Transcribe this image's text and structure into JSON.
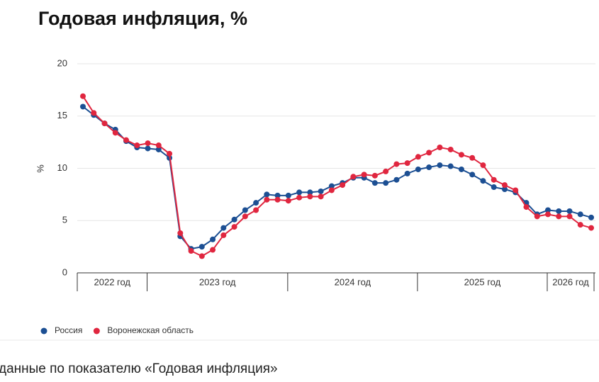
{
  "chart_data": {
    "type": "line",
    "title": "Годовая инфляция, %",
    "ylabel": "%",
    "categories": [
      null,
      null,
      null,
      null,
      null,
      null,
      null,
      null,
      null,
      null,
      null,
      null,
      null,
      null,
      null,
      null,
      null,
      null,
      null,
      null,
      null,
      null,
      null,
      null,
      null,
      null,
      null,
      null,
      null,
      null,
      null,
      null,
      null,
      null,
      null,
      null,
      null,
      null,
      null,
      null,
      null,
      null,
      null,
      null,
      null,
      null,
      null,
      null
    ],
    "year_groups": [
      {
        "label": "2022 год",
        "count": 6
      },
      {
        "label": "2023 год",
        "count": 13
      },
      {
        "label": "2024 год",
        "count": 12
      },
      {
        "label": "2025 год",
        "count": 12
      },
      {
        "label": "2026 год",
        "count": 5
      }
    ],
    "series": [
      {
        "name": "Россия",
        "color": "#1c4f93",
        "values": [
          15.9,
          15.1,
          14.3,
          13.7,
          12.6,
          12.0,
          11.9,
          11.8,
          11.0,
          3.5,
          2.3,
          2.5,
          3.2,
          4.3,
          5.1,
          6.0,
          6.7,
          7.5,
          7.4,
          7.4,
          7.7,
          7.7,
          7.8,
          8.3,
          8.6,
          9.1,
          9.1,
          8.6,
          8.6,
          8.9,
          9.5,
          9.9,
          10.1,
          10.3,
          10.2,
          9.9,
          9.4,
          8.8,
          8.2,
          8.0,
          7.7,
          6.7,
          5.6,
          6.0,
          5.9,
          5.9,
          5.6,
          5.3
        ]
      },
      {
        "name": "Воронежская область",
        "color": "#e0263f",
        "values": [
          16.9,
          15.3,
          14.3,
          13.4,
          12.7,
          12.2,
          12.4,
          12.2,
          11.4,
          3.8,
          2.1,
          1.6,
          2.2,
          3.6,
          4.4,
          5.4,
          6.0,
          7.0,
          7.0,
          6.9,
          7.2,
          7.3,
          7.3,
          7.9,
          8.4,
          9.2,
          9.4,
          9.3,
          9.7,
          10.4,
          10.5,
          11.1,
          11.5,
          12.0,
          11.8,
          11.3,
          11.0,
          10.3,
          8.9,
          8.4,
          7.9,
          6.3,
          5.4,
          5.6,
          5.4,
          5.4,
          4.6,
          4.3
        ]
      }
    ],
    "ylim": [
      0,
      20
    ],
    "yticks": [
      0,
      5,
      10,
      15,
      20
    ],
    "grid": true
  },
  "footer": "данные по показателю «Годовая инфляция»"
}
